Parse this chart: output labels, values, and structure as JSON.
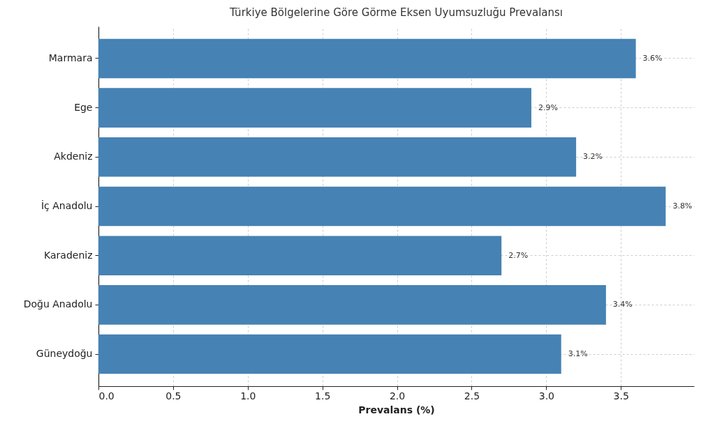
{
  "chart_data": {
    "type": "bar",
    "orientation": "horizontal",
    "title": "Türkiye Bölgelerine Göre Görme Eksen Uyumsuzluğu Prevalansı",
    "xlabel": "Prevalans (%)",
    "categories": [
      "Marmara",
      "Ege",
      "Akdeniz",
      "İç Anadolu",
      "Karadeniz",
      "Doğu Anadolu",
      "Güneydoğu"
    ],
    "values": [
      3.6,
      2.9,
      3.2,
      3.8,
      2.7,
      3.4,
      3.1
    ],
    "value_labels": [
      "3.6%",
      "2.9%",
      "3.2%",
      "3.8%",
      "2.7%",
      "3.4%",
      "3.1%"
    ],
    "color": "#4682b4",
    "xlim": [
      0,
      3.99
    ],
    "xticks": [
      {
        "value": 0,
        "label": "0.0"
      },
      {
        "value": 0.5,
        "label": "0.5"
      },
      {
        "value": 1,
        "label": "1.0"
      },
      {
        "value": 1.5,
        "label": "1.5"
      },
      {
        "value": 2,
        "label": "2.0"
      },
      {
        "value": 2.5,
        "label": "2.5"
      },
      {
        "value": 3,
        "label": "3.0"
      },
      {
        "value": 3.5,
        "label": "3.5"
      }
    ],
    "grid": true
  }
}
